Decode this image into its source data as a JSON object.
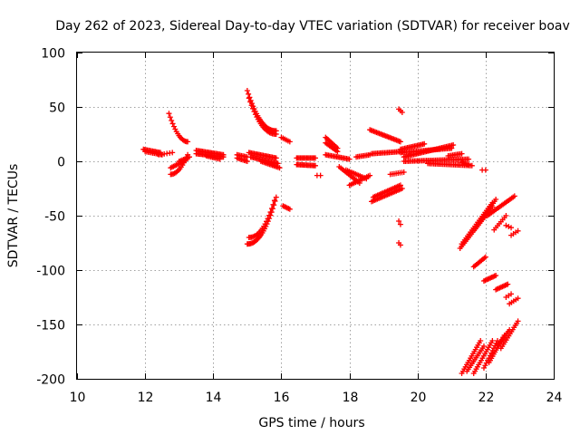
{
  "chart_data": {
    "type": "scatter",
    "title": "Day 262 of 2023, Sidereal Day-to-day VTEC variation (SDTVAR) for receiver boav",
    "xlabel": "GPS time / hours",
    "ylabel": "SDTVAR / TECUs",
    "xlim": [
      10,
      24
    ],
    "ylim": [
      -200,
      100
    ],
    "x_ticks": [
      10,
      12,
      14,
      16,
      18,
      20,
      22,
      24
    ],
    "x_tick_labels": [
      "10",
      "12",
      "14",
      "16",
      "18",
      "20",
      "22",
      "24"
    ],
    "y_ticks": [
      -200,
      -150,
      -100,
      -50,
      0,
      50,
      100
    ],
    "y_tick_labels": [
      "-200",
      "-150",
      "-100",
      "-50",
      "0",
      "50",
      "100"
    ],
    "grid": true,
    "marker": "+",
    "series": [
      {
        "name": "SDTVAR",
        "color": "#ff0000",
        "arcs": [
          {
            "x0": 11.95,
            "x1": 12.45,
            "y0": 11,
            "y1": 8,
            "n": 14
          },
          {
            "x0": 12.0,
            "x1": 12.5,
            "y0": 9,
            "y1": 6,
            "n": 12
          },
          {
            "x0": 12.4,
            "x1": 12.8,
            "y0": 6,
            "y1": 8,
            "n": 6
          },
          {
            "x0": 12.7,
            "x1": 13.25,
            "y0": 44,
            "y1": 18,
            "n": 16,
            "curve": 0.5
          },
          {
            "x0": 12.75,
            "x1": 13.2,
            "y0": -6,
            "y1": 1,
            "n": 12
          },
          {
            "x0": 12.75,
            "x1": 13.25,
            "y0": -12,
            "y1": 6,
            "n": 14,
            "curve": -0.5
          },
          {
            "x0": 13.0,
            "x1": 13.3,
            "y0": 0,
            "y1": 4,
            "n": 8
          },
          {
            "x0": 13.5,
            "x1": 14.3,
            "y0": 10,
            "y1": 6,
            "n": 22
          },
          {
            "x0": 13.5,
            "x1": 14.3,
            "y0": 7,
            "y1": 4,
            "n": 22
          },
          {
            "x0": 13.8,
            "x1": 14.2,
            "y0": 5,
            "y1": 2,
            "n": 10
          },
          {
            "x0": 14.7,
            "x1": 15.0,
            "y0": 6,
            "y1": 4,
            "n": 8
          },
          {
            "x0": 14.7,
            "x1": 15.0,
            "y0": 3,
            "y1": 0,
            "n": 8
          },
          {
            "x0": 15.0,
            "x1": 15.85,
            "y0": 65,
            "y1": 28,
            "n": 26,
            "curve": 0.6
          },
          {
            "x0": 15.05,
            "x1": 15.85,
            "y0": 58,
            "y1": 25,
            "n": 22,
            "curve": 0.6
          },
          {
            "x0": 15.0,
            "x1": 15.85,
            "y0": -76,
            "y1": -33,
            "n": 26,
            "curve": -0.6
          },
          {
            "x0": 15.05,
            "x1": 15.8,
            "y0": -70,
            "y1": -36,
            "n": 20,
            "curve": -0.6
          },
          {
            "x0": 15.05,
            "x1": 15.85,
            "y0": 8,
            "y1": 3,
            "n": 22
          },
          {
            "x0": 15.1,
            "x1": 15.9,
            "y0": 4,
            "y1": -2,
            "n": 22
          },
          {
            "x0": 15.4,
            "x1": 15.95,
            "y0": 0,
            "y1": -6,
            "n": 14
          },
          {
            "x0": 16.0,
            "x1": 16.25,
            "y0": 22,
            "y1": 18,
            "n": 6
          },
          {
            "x0": 16.05,
            "x1": 16.25,
            "y0": -41,
            "y1": -44,
            "n": 6
          },
          {
            "x0": 16.45,
            "x1": 17.0,
            "y0": 3,
            "y1": 3,
            "n": 16
          },
          {
            "x0": 16.45,
            "x1": 17.0,
            "y0": -3,
            "y1": -4,
            "n": 16
          },
          {
            "x0": 17.05,
            "x1": 17.15,
            "y0": -13,
            "y1": -13,
            "n": 2
          },
          {
            "x0": 17.3,
            "x1": 17.65,
            "y0": 22,
            "y1": 12,
            "n": 10
          },
          {
            "x0": 17.3,
            "x1": 17.65,
            "y0": 17,
            "y1": 9,
            "n": 10
          },
          {
            "x0": 17.3,
            "x1": 18.0,
            "y0": 6,
            "y1": 2,
            "n": 18
          },
          {
            "x0": 17.7,
            "x1": 18.3,
            "y0": -5,
            "y1": -20,
            "n": 14
          },
          {
            "x0": 17.9,
            "x1": 18.5,
            "y0": -8,
            "y1": -16,
            "n": 14
          },
          {
            "x0": 18.0,
            "x1": 18.6,
            "y0": -22,
            "y1": -13,
            "n": 14
          },
          {
            "x0": 18.2,
            "x1": 18.6,
            "y0": 4,
            "y1": 6,
            "n": 10
          },
          {
            "x0": 18.6,
            "x1": 19.5,
            "y0": 29,
            "y1": 18,
            "n": 24
          },
          {
            "x0": 18.65,
            "x1": 19.55,
            "y0": 7,
            "y1": 9,
            "n": 22
          },
          {
            "x0": 18.65,
            "x1": 19.55,
            "y0": -37,
            "y1": -25,
            "n": 22
          },
          {
            "x0": 18.7,
            "x1": 19.5,
            "y0": -33,
            "y1": -22,
            "n": 20
          },
          {
            "x0": 19.2,
            "x1": 19.6,
            "y0": -12,
            "y1": -10,
            "n": 8
          },
          {
            "x0": 19.45,
            "x1": 19.55,
            "y0": 48,
            "y1": 45,
            "n": 3
          },
          {
            "x0": 19.45,
            "x1": 19.5,
            "y0": -55,
            "y1": -58,
            "n": 2
          },
          {
            "x0": 19.45,
            "x1": 19.5,
            "y0": -75,
            "y1": -77,
            "n": 2
          },
          {
            "x0": 19.5,
            "x1": 20.2,
            "y0": 11,
            "y1": 16,
            "n": 18
          },
          {
            "x0": 19.5,
            "x1": 21.0,
            "y0": 8,
            "y1": 12,
            "n": 36
          },
          {
            "x0": 19.6,
            "x1": 21.05,
            "y0": 4,
            "y1": 15,
            "n": 36
          },
          {
            "x0": 19.6,
            "x1": 21.5,
            "y0": 0,
            "y1": 2,
            "n": 44
          },
          {
            "x0": 20.3,
            "x1": 21.6,
            "y0": -2,
            "y1": -4,
            "n": 30
          },
          {
            "x0": 20.9,
            "x1": 21.3,
            "y0": 5,
            "y1": 7,
            "n": 10
          },
          {
            "x0": 21.3,
            "x1": 21.5,
            "y0": -1,
            "y1": -3,
            "n": 5
          },
          {
            "x0": 21.9,
            "x1": 22.0,
            "y0": -8,
            "y1": -8,
            "n": 2
          },
          {
            "x0": 21.25,
            "x1": 22.2,
            "y0": -80,
            "y1": -42,
            "n": 24
          },
          {
            "x0": 21.3,
            "x1": 22.2,
            "y0": -76,
            "y1": -38,
            "n": 22
          },
          {
            "x0": 21.7,
            "x1": 22.3,
            "y0": -62,
            "y1": -35,
            "n": 16
          },
          {
            "x0": 22.05,
            "x1": 22.85,
            "y0": -50,
            "y1": -32,
            "n": 20
          },
          {
            "x0": 22.25,
            "x1": 22.6,
            "y0": -63,
            "y1": -50,
            "n": 8
          },
          {
            "x0": 22.6,
            "x1": 22.75,
            "y0": -59,
            "y1": -61,
            "n": 3
          },
          {
            "x0": 22.75,
            "x1": 22.95,
            "y0": -68,
            "y1": -64,
            "n": 4
          },
          {
            "x0": 21.65,
            "x1": 22.0,
            "y0": -97,
            "y1": -88,
            "n": 10
          },
          {
            "x0": 21.95,
            "x1": 22.3,
            "y0": -110,
            "y1": -105,
            "n": 10
          },
          {
            "x0": 22.3,
            "x1": 22.65,
            "y0": -118,
            "y1": -113,
            "n": 10
          },
          {
            "x0": 22.6,
            "x1": 22.75,
            "y0": -125,
            "y1": -122,
            "n": 3
          },
          {
            "x0": 22.7,
            "x1": 22.95,
            "y0": -131,
            "y1": -126,
            "n": 5
          },
          {
            "x0": 21.3,
            "x1": 21.85,
            "y0": -195,
            "y1": -165,
            "n": 16
          },
          {
            "x0": 21.45,
            "x1": 21.95,
            "y0": -193,
            "y1": -170,
            "n": 14
          },
          {
            "x0": 21.65,
            "x1": 22.2,
            "y0": -195,
            "y1": -165,
            "n": 16
          },
          {
            "x0": 21.95,
            "x1": 22.35,
            "y0": -190,
            "y1": -165,
            "n": 12
          },
          {
            "x0": 22.1,
            "x1": 22.55,
            "y0": -185,
            "y1": -160,
            "n": 14
          },
          {
            "x0": 22.35,
            "x1": 22.7,
            "y0": -170,
            "y1": -155,
            "n": 10
          },
          {
            "x0": 22.45,
            "x1": 22.95,
            "y0": -172,
            "y1": -147,
            "n": 14
          }
        ]
      }
    ]
  }
}
